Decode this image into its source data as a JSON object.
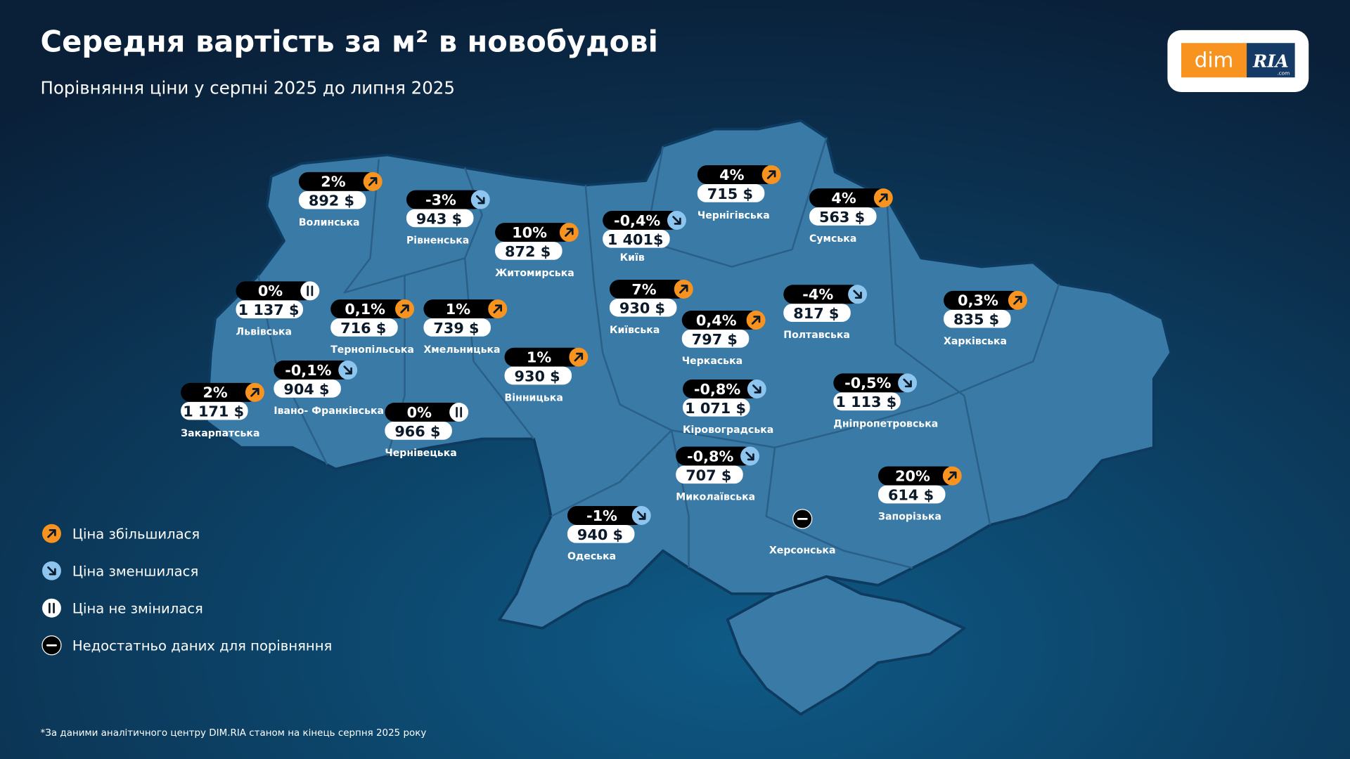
{
  "header": {
    "title": "Середня вартість за м² в новобудові",
    "subtitle": "Порівняння ціни у серпні 2025 до липня 2025"
  },
  "logo": {
    "left": "dim",
    "right": "RIA",
    "domain": ".com"
  },
  "regions": [
    {
      "name": "Волинська",
      "change": "2%",
      "price": "892 $",
      "trend": "up"
    },
    {
      "name": "Рівненська",
      "change": "-3%",
      "price": "943 $",
      "trend": "down"
    },
    {
      "name": "Житомирська",
      "change": "10%",
      "price": "872 $",
      "trend": "up"
    },
    {
      "name": "Київ",
      "change": "-0,4%",
      "price": "1 401$",
      "trend": "down"
    },
    {
      "name": "Чернігівська",
      "change": "4%",
      "price": "715 $",
      "trend": "up"
    },
    {
      "name": "Сумська",
      "change": "4%",
      "price": "563 $",
      "trend": "up"
    },
    {
      "name": "Львівська",
      "change": "0%",
      "price": "1 137 $",
      "trend": "same"
    },
    {
      "name": "Тернопільська",
      "change": "0,1%",
      "price": "716 $",
      "trend": "up"
    },
    {
      "name": "Хмельницька",
      "change": "1%",
      "price": "739 $",
      "trend": "up"
    },
    {
      "name": "Київська",
      "change": "7%",
      "price": "930 $",
      "trend": "up"
    },
    {
      "name": "Черкаська",
      "change": "0,4%",
      "price": "797 $",
      "trend": "up"
    },
    {
      "name": "Полтавська",
      "change": "-4%",
      "price": "817 $",
      "trend": "down"
    },
    {
      "name": "Харківська",
      "change": "0,3%",
      "price": "835 $",
      "trend": "up"
    },
    {
      "name": "Івано- Франківська",
      "change": "-0,1%",
      "price": "904 $",
      "trend": "down"
    },
    {
      "name": "Вінницька",
      "change": "1%",
      "price": "930 $",
      "trend": "up"
    },
    {
      "name": "Закарпатська",
      "change": "2%",
      "price": "1 171 $",
      "trend": "up"
    },
    {
      "name": "Чернівецька",
      "change": "0%",
      "price": "966 $",
      "trend": "same"
    },
    {
      "name": "Кіровоградська",
      "change": "-0,8%",
      "price": "1 071 $",
      "trend": "down"
    },
    {
      "name": "Дніпропетровська",
      "change": "-0,5%",
      "price": "1 113 $",
      "trend": "down"
    },
    {
      "name": "Миколаївська",
      "change": "-0,8%",
      "price": "707 $",
      "trend": "down"
    },
    {
      "name": "Запорізька",
      "change": "20%",
      "price": "614 $",
      "trend": "up"
    },
    {
      "name": "Одеська",
      "change": "-1%",
      "price": "940 $",
      "trend": "down"
    },
    {
      "name": "Херсонська",
      "trend": "none"
    }
  ],
  "legend": [
    {
      "trend": "up",
      "label": "Ціна збільшилася"
    },
    {
      "trend": "down",
      "label": "Ціна зменшилася"
    },
    {
      "trend": "same",
      "label": "Ціна не змінилася"
    },
    {
      "trend": "none",
      "label": "Недостатньо даних для порівняння"
    }
  ],
  "footnote": "*За даними аналітичного центру DIM.RIA станом на кінець серпня 2025 року"
}
